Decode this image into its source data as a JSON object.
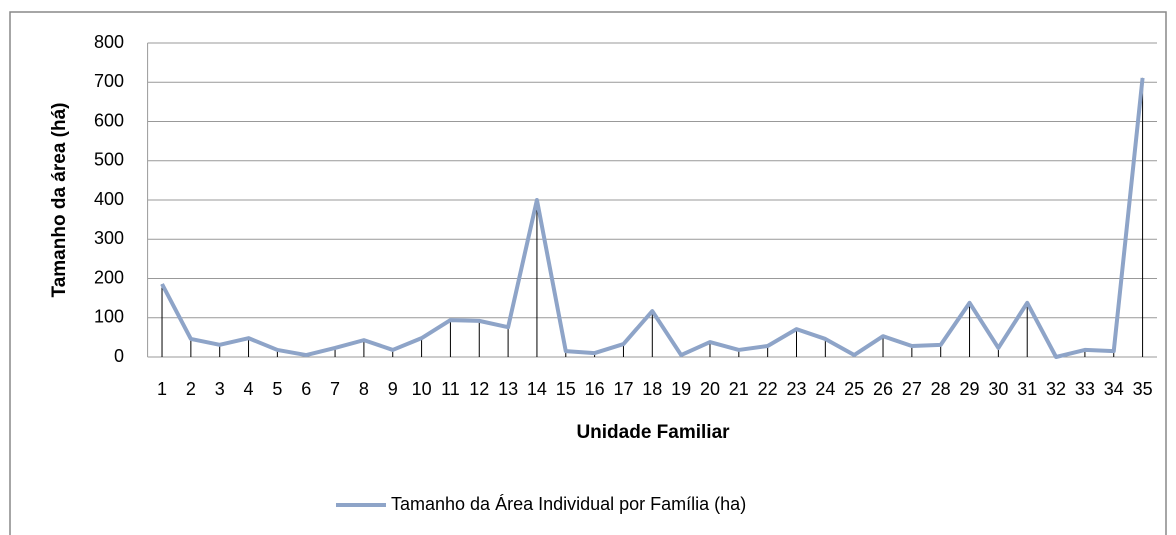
{
  "chart_data": {
    "type": "line",
    "x_label": "Unidade Familiar",
    "y_label": "Tamanho da área (há)",
    "categories": [
      "1",
      "2",
      "3",
      "4",
      "5",
      "6",
      "7",
      "8",
      "9",
      "10",
      "11",
      "12",
      "13",
      "14",
      "15",
      "16",
      "17",
      "18",
      "19",
      "20",
      "21",
      "22",
      "23",
      "24",
      "25",
      "26",
      "27",
      "28",
      "29",
      "30",
      "31",
      "32",
      "33",
      "34",
      "35"
    ],
    "series": [
      {
        "name": "Tamanho da Área Individual por Família (ha)",
        "color": "#8ea4c8",
        "values": [
          186,
          46,
          31,
          48,
          18,
          5,
          23,
          43,
          18,
          48,
          94,
          92,
          76,
          400,
          15,
          10,
          33,
          117,
          5,
          38,
          18,
          28,
          71,
          46,
          5,
          53,
          28,
          31,
          138,
          23,
          138,
          0,
          18,
          15,
          711
        ]
      }
    ],
    "ylim": [
      0,
      800
    ],
    "yticks": [
      0,
      100,
      200,
      300,
      400,
      500,
      600,
      700,
      800
    ],
    "grid": true,
    "drop_lines": true,
    "legend": "bottom"
  }
}
